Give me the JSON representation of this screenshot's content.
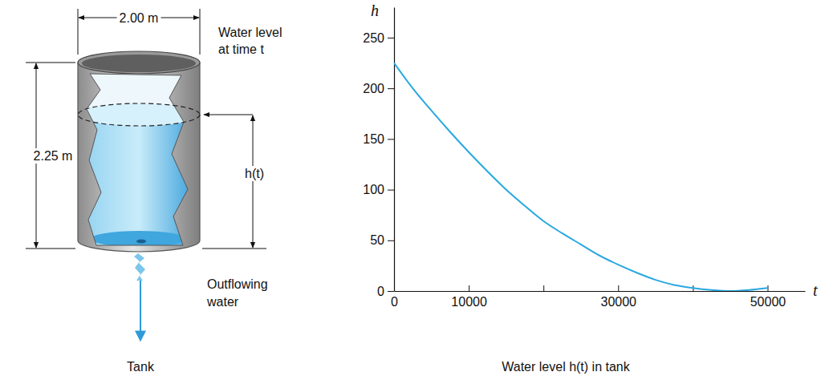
{
  "chart_data": {
    "type": "line",
    "title": "Water level h(t) in tank",
    "xlabel": "t",
    "ylabel": "h",
    "x": [
      0,
      2500,
      5000,
      7500,
      10000,
      12500,
      15000,
      17500,
      20000,
      22500,
      25000,
      27500,
      30000,
      32500,
      35000,
      37500,
      40000,
      42500,
      45000,
      47500,
      50000
    ],
    "values": [
      225,
      200,
      178,
      157,
      137,
      118,
      100,
      84,
      69,
      57,
      46,
      35,
      26,
      18,
      11,
      6,
      3,
      1,
      0,
      1,
      3
    ],
    "color": "#29a8e0",
    "xlim": [
      0,
      55000
    ],
    "ylim": [
      0,
      280
    ],
    "xticks": [
      0,
      10000,
      {
        "value": 20000,
        "label": null
      },
      30000,
      {
        "value": 40000,
        "label": null
      },
      50000
    ],
    "yticks": [
      0,
      50,
      100,
      150,
      200,
      250
    ],
    "grid": false
  },
  "diagram": {
    "width_label": "2.00 m",
    "height_label": "2.25 m",
    "level_label": [
      "Water level",
      "at time t"
    ],
    "depth_label": "h(t)",
    "outflow_label": [
      "Outflowing",
      "water"
    ],
    "caption": "Tank"
  }
}
